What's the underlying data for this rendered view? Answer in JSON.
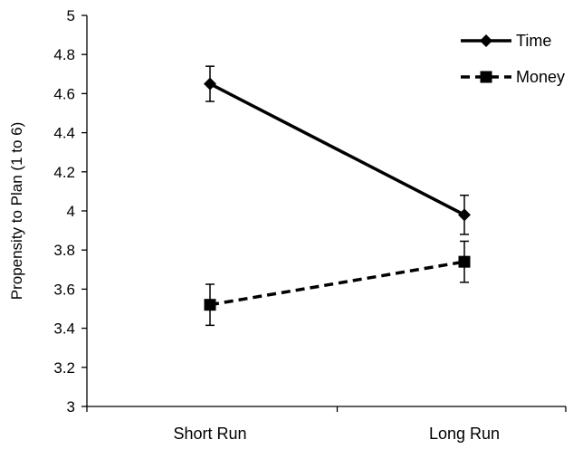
{
  "chart_data": {
    "type": "line",
    "categories": [
      "Short Run",
      "Long Run"
    ],
    "ylabel": "Propensity to Plan (1 to 6)",
    "xlabel": "",
    "title": "",
    "ylim": [
      3,
      5
    ],
    "yticks": [
      "3",
      "3.2",
      "3.4",
      "3.6",
      "3.8",
      "4",
      "4.2",
      "4.4",
      "4.6",
      "4.8",
      "5"
    ],
    "grid": false,
    "legend_position": "top-right",
    "series": [
      {
        "name": "Time",
        "values": [
          4.65,
          3.98
        ],
        "error": [
          0.09,
          0.1
        ],
        "marker": "diamond",
        "line_style": "solid",
        "color": "#000000"
      },
      {
        "name": "Money",
        "values": [
          3.52,
          3.74
        ],
        "error": [
          0.105,
          0.105
        ],
        "marker": "square",
        "line_style": "dashed",
        "color": "#000000"
      }
    ]
  }
}
